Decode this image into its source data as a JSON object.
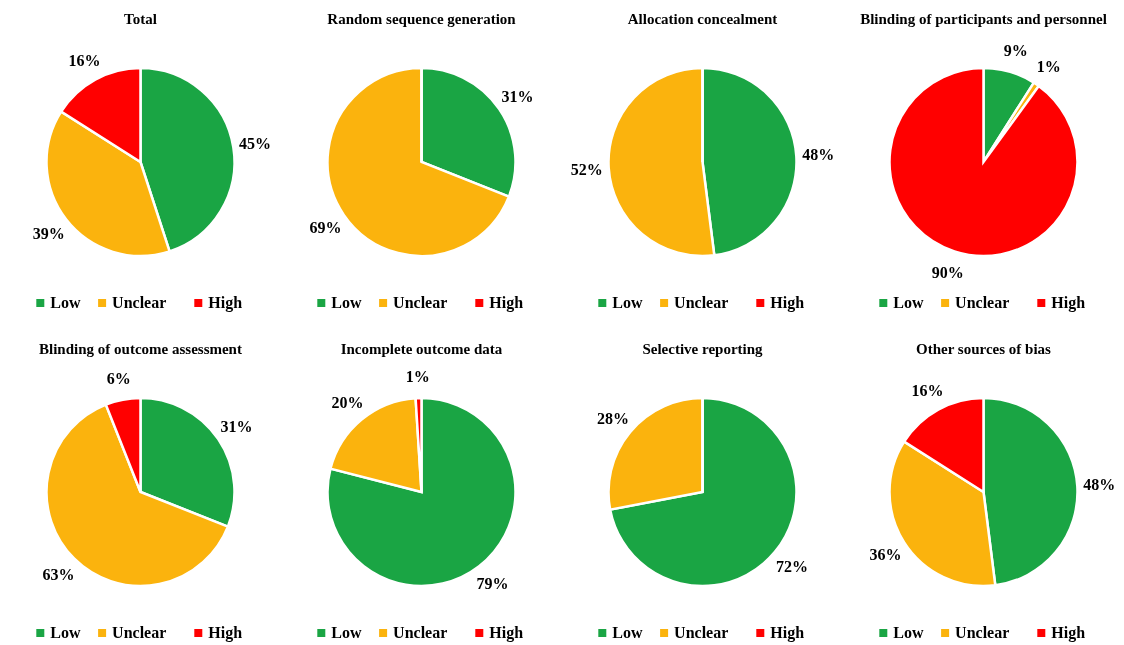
{
  "chart_data": [
    {
      "type": "pie",
      "title": "Total",
      "categories": [
        "Low",
        "Unclear",
        "High"
      ],
      "values": [
        45,
        39,
        16
      ],
      "value_labels": [
        "45%",
        "39%",
        "16%"
      ],
      "colors": [
        "#1aa544",
        "#fbb30d",
        "#ff0000"
      ],
      "legend": "bottom"
    },
    {
      "type": "pie",
      "title": "Random sequence generation",
      "categories": [
        "Low",
        "Unclear",
        "High"
      ],
      "values": [
        31,
        69,
        0
      ],
      "value_labels": [
        "31%",
        "69%",
        null
      ],
      "colors": [
        "#1aa544",
        "#fbb30d",
        "#ff0000"
      ],
      "legend": "bottom"
    },
    {
      "type": "pie",
      "title": "Allocation concealment",
      "categories": [
        "Low",
        "Unclear",
        "High"
      ],
      "values": [
        48,
        52,
        0
      ],
      "value_labels": [
        "48%",
        "52%",
        null
      ],
      "colors": [
        "#1aa544",
        "#fbb30d",
        "#ff0000"
      ],
      "legend": "bottom"
    },
    {
      "type": "pie",
      "title": "Blinding of participants and personnel",
      "categories": [
        "Low",
        "Unclear",
        "High"
      ],
      "values": [
        9,
        1,
        90
      ],
      "value_labels": [
        "9%",
        "1%",
        "90%"
      ],
      "colors": [
        "#1aa544",
        "#fbb30d",
        "#ff0000"
      ],
      "legend": "bottom"
    },
    {
      "type": "pie",
      "title": "Blinding of outcome assessment",
      "categories": [
        "Low",
        "Unclear",
        "High"
      ],
      "values": [
        31,
        63,
        6
      ],
      "value_labels": [
        "31%",
        "63%",
        "6%"
      ],
      "colors": [
        "#1aa544",
        "#fbb30d",
        "#ff0000"
      ],
      "legend": "bottom"
    },
    {
      "type": "pie",
      "title": "Incomplete outcome data",
      "categories": [
        "Low",
        "Unclear",
        "High"
      ],
      "values": [
        79,
        20,
        1
      ],
      "value_labels": [
        "79%",
        "20%",
        "1%"
      ],
      "colors": [
        "#1aa544",
        "#fbb30d",
        "#ff0000"
      ],
      "legend": "bottom"
    },
    {
      "type": "pie",
      "title": "Selective reporting",
      "categories": [
        "Low",
        "Unclear",
        "High"
      ],
      "values": [
        72,
        28,
        0
      ],
      "value_labels": [
        "72%",
        "28%",
        null
      ],
      "colors": [
        "#1aa544",
        "#fbb30d",
        "#ff0000"
      ],
      "legend": "bottom"
    },
    {
      "type": "pie",
      "title": "Other sources of bias",
      "categories": [
        "Low",
        "Unclear",
        "High"
      ],
      "values": [
        48,
        36,
        16
      ],
      "value_labels": [
        "48%",
        "36%",
        "16%"
      ],
      "colors": [
        "#1aa544",
        "#fbb30d",
        "#ff0000"
      ],
      "legend": "bottom"
    }
  ]
}
